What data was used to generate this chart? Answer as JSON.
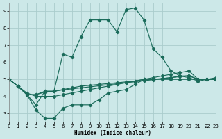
{
  "xlabel": "Humidex (Indice chaleur)",
  "bg_color": "#cce8e8",
  "grid_color": "#aacccc",
  "line_color": "#1a6b5a",
  "xlim": [
    0,
    23
  ],
  "ylim": [
    2.5,
    9.5
  ],
  "xticks": [
    0,
    1,
    2,
    3,
    4,
    5,
    6,
    7,
    8,
    9,
    10,
    11,
    12,
    13,
    14,
    15,
    16,
    17,
    18,
    19,
    20,
    21,
    22,
    23
  ],
  "yticks": [
    3,
    4,
    5,
    6,
    7,
    8,
    9
  ],
  "x": [
    0,
    1,
    2,
    3,
    4,
    5,
    6,
    7,
    8,
    9,
    10,
    11,
    12,
    13,
    14,
    15,
    16,
    17,
    18,
    19,
    20,
    21,
    22,
    23
  ],
  "line_high": [
    5.0,
    4.6,
    4.1,
    3.5,
    4.3,
    4.3,
    6.5,
    6.3,
    7.5,
    8.5,
    8.5,
    8.5,
    7.8,
    9.1,
    9.2,
    8.5,
    6.8,
    6.3,
    5.5,
    5.2,
    5.1,
    4.9,
    5.0,
    5.1
  ],
  "line_low": [
    5.0,
    4.6,
    4.1,
    3.2,
    2.7,
    2.7,
    3.3,
    3.5,
    3.5,
    3.5,
    3.8,
    4.2,
    4.3,
    4.4,
    4.7,
    5.0,
    5.0,
    5.0,
    5.0,
    5.0,
    5.0,
    5.0,
    5.0,
    5.0
  ],
  "line_flat1": [
    5.0,
    4.6,
    4.1,
    4.1,
    4.3,
    4.3,
    4.4,
    4.5,
    4.6,
    4.65,
    4.7,
    4.75,
    4.8,
    4.85,
    4.9,
    5.0,
    5.0,
    5.05,
    5.1,
    5.2,
    5.2,
    5.0,
    5.0,
    5.0
  ],
  "line_flat2": [
    5.0,
    4.6,
    4.1,
    4.1,
    4.25,
    4.3,
    4.38,
    4.44,
    4.5,
    4.56,
    4.62,
    4.68,
    4.74,
    4.8,
    4.86,
    4.92,
    4.98,
    5.04,
    5.1,
    5.16,
    5.22,
    5.0,
    5.0,
    5.0
  ],
  "line_flat3": [
    5.0,
    4.6,
    4.2,
    4.0,
    4.0,
    4.0,
    4.1,
    4.2,
    4.3,
    4.4,
    4.5,
    4.6,
    4.7,
    4.8,
    4.9,
    5.0,
    5.1,
    5.2,
    5.3,
    5.4,
    5.5,
    5.0,
    5.0,
    5.0
  ]
}
